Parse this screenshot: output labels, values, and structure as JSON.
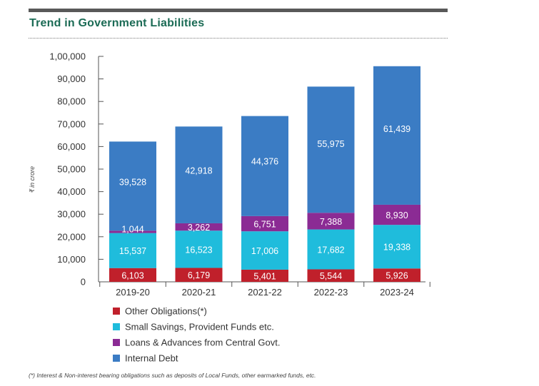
{
  "colors": {
    "other": "#c0202b",
    "small_savings": "#1fbcdc",
    "loans": "#8b2b94",
    "internal_debt": "#3b7cc4",
    "title": "#1b6b55"
  },
  "chart_data": {
    "type": "bar",
    "stacked": true,
    "title": "Trend in Government Liabilities",
    "xlabel": "",
    "ylabel": "₹ in crore",
    "ylim": [
      0,
      100000
    ],
    "ytick_values": [
      0,
      10000,
      20000,
      30000,
      40000,
      50000,
      60000,
      70000,
      80000,
      90000,
      100000
    ],
    "ytick_labels": [
      "0",
      "10,000",
      "20,000",
      "30,000",
      "40,000",
      "50,000",
      "60,000",
      "70,000",
      "80,000",
      "90,000",
      "1,00,000"
    ],
    "categories": [
      "2019-20",
      "2020-21",
      "2021-22",
      "2022-23",
      "2023-24"
    ],
    "series": [
      {
        "key": "other",
        "name": "Other Obligations(*)",
        "values": [
          6103,
          6179,
          5401,
          5544,
          5926
        ],
        "labels": [
          "6,103",
          "6,179",
          "5,401",
          "5,544",
          "5,926"
        ]
      },
      {
        "key": "small_savings",
        "name": "Small Savings, Provident Funds etc.",
        "values": [
          15537,
          16523,
          17006,
          17682,
          19338
        ],
        "labels": [
          "15,537",
          "16,523",
          "17,006",
          "17,682",
          "19,338"
        ]
      },
      {
        "key": "loans",
        "name": "Loans & Advances from Central Govt.",
        "values": [
          1044,
          3262,
          6751,
          7388,
          8930
        ],
        "labels": [
          "1,044",
          "3,262",
          "6,751",
          "7,388",
          "8,930"
        ]
      },
      {
        "key": "internal_debt",
        "name": "Internal Debt",
        "values": [
          39528,
          42918,
          44376,
          55975,
          61439
        ],
        "labels": [
          "39,528",
          "42,918",
          "44,376",
          "55,975",
          "61,439"
        ]
      }
    ],
    "legend_position": "bottom-left",
    "grid": false
  },
  "footnote": "(*) Interest & Non-interest bearing obligations such as deposits of Local Funds, other earmarked funds, etc."
}
